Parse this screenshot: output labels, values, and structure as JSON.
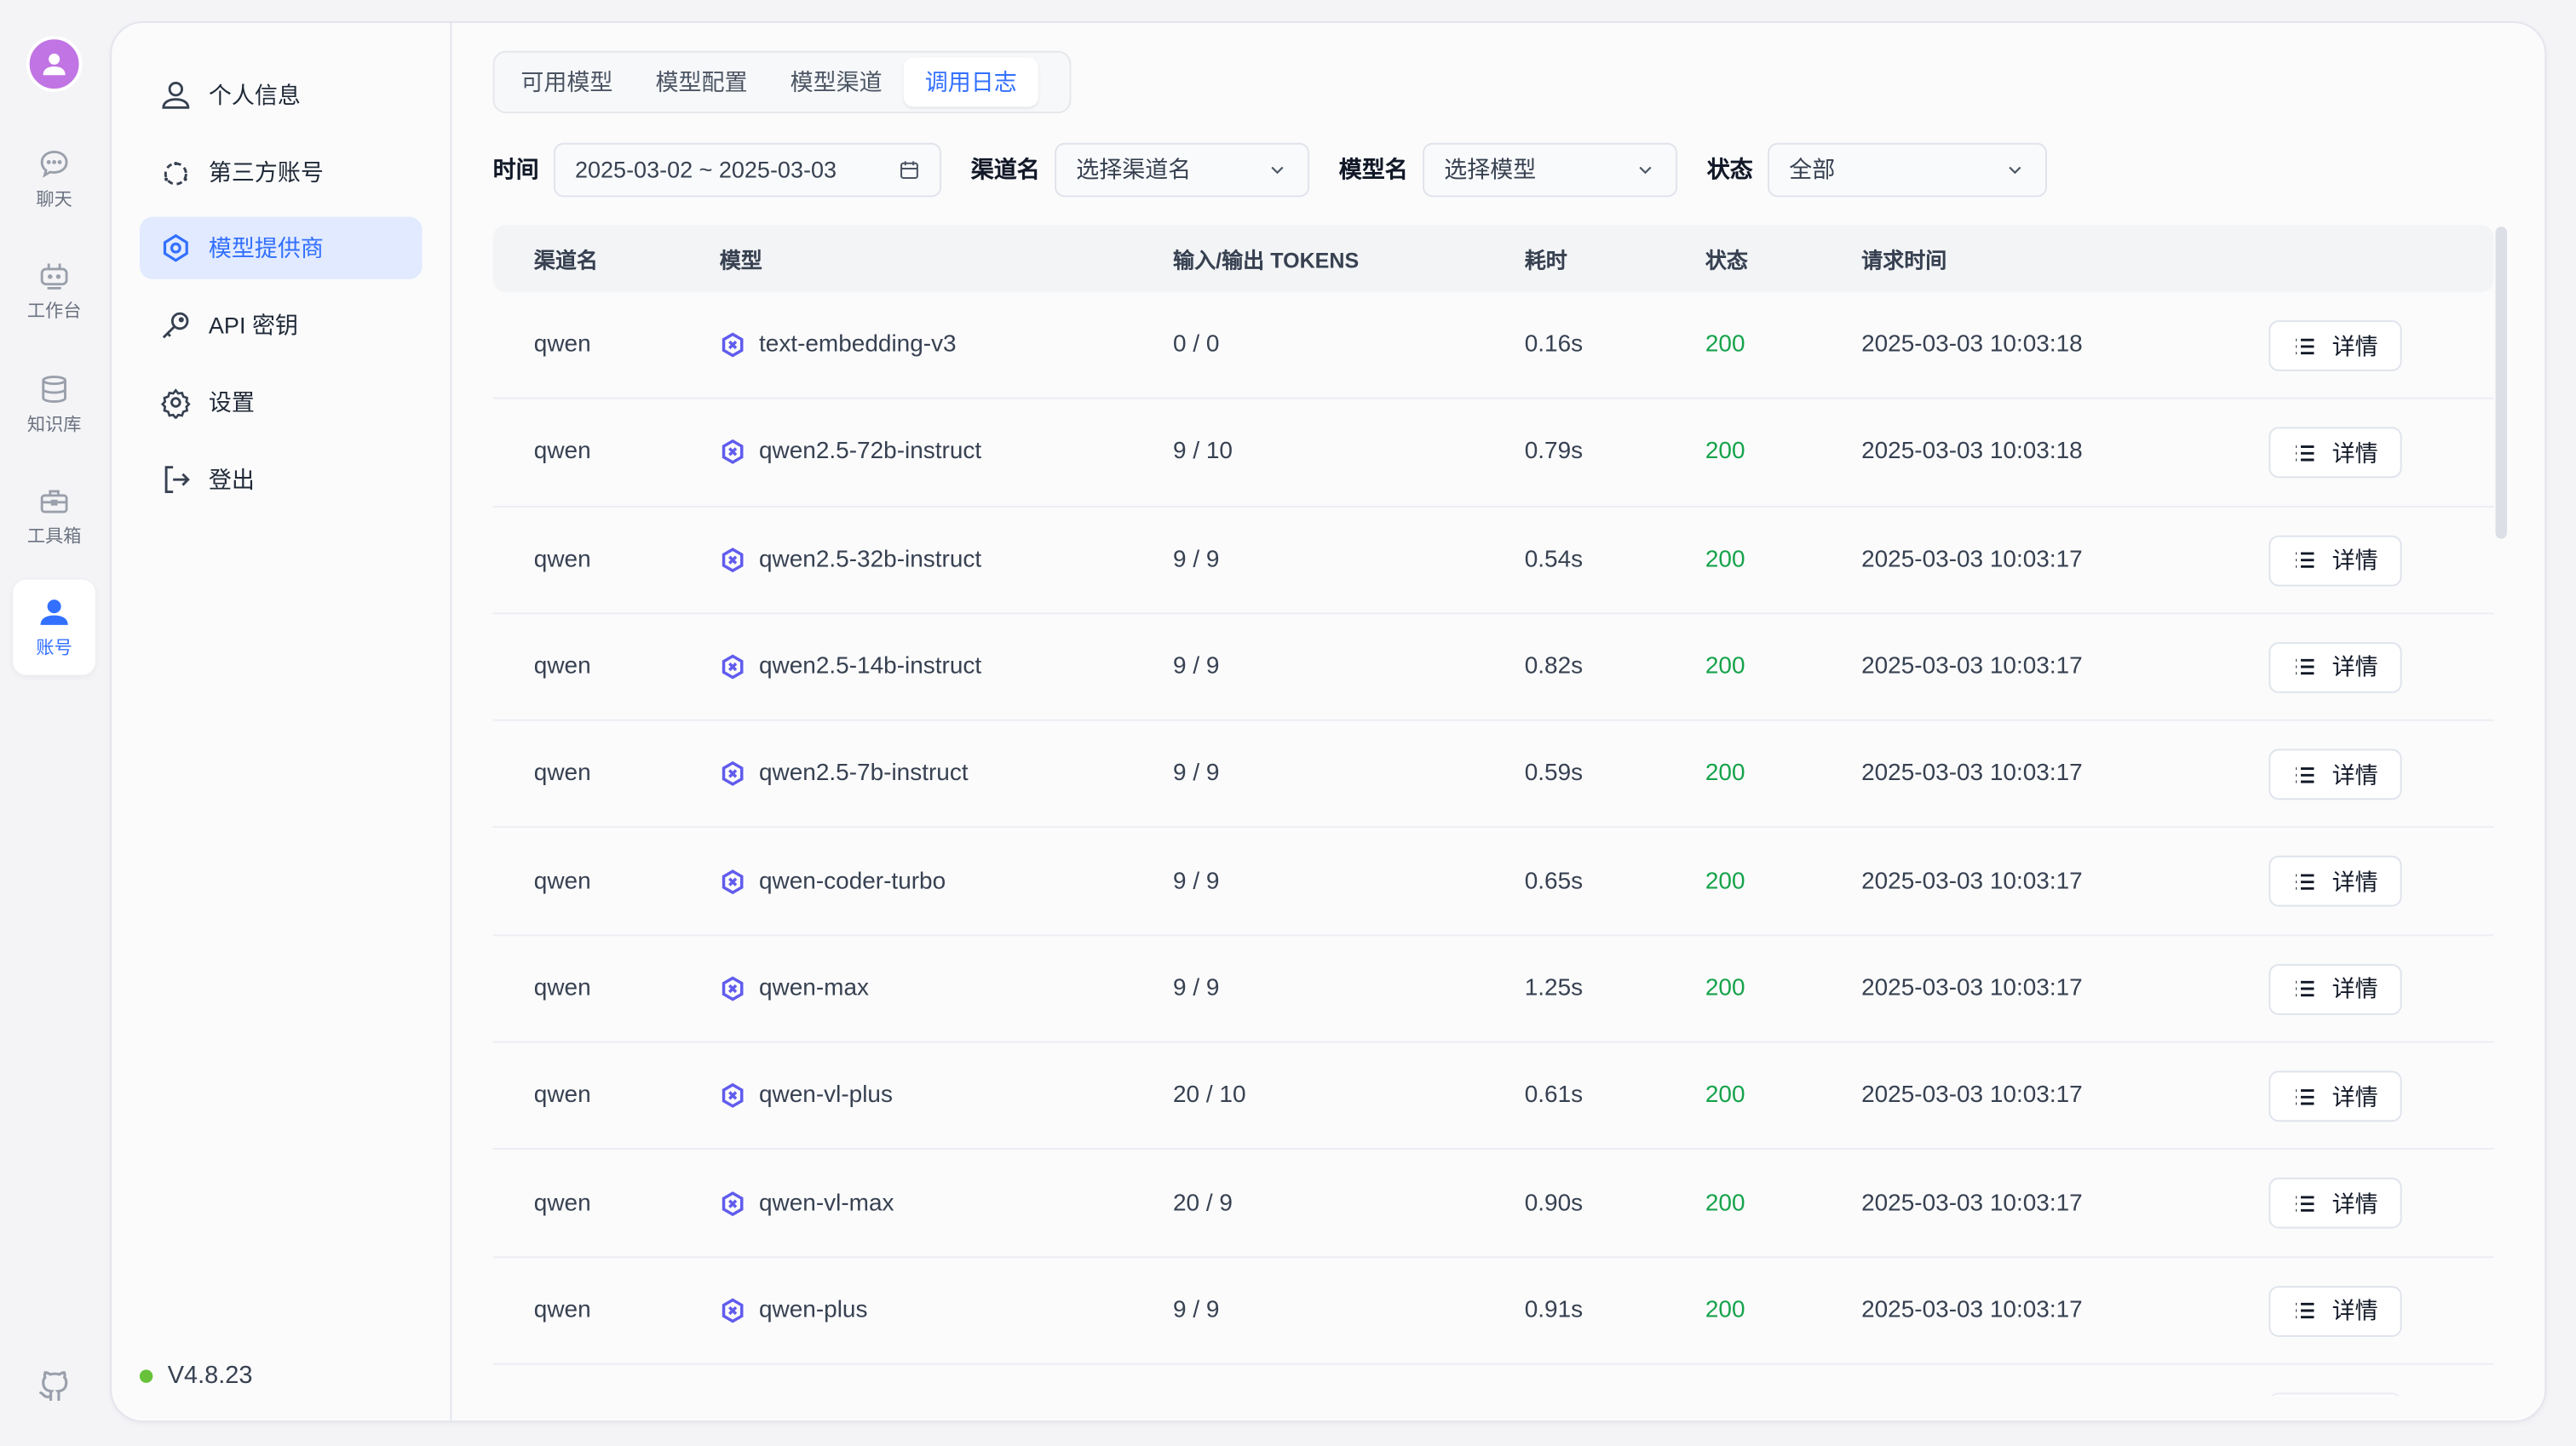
{
  "rail": {
    "items": [
      {
        "label": "聊天",
        "icon": "chat-icon"
      },
      {
        "label": "工作台",
        "icon": "robot-icon"
      },
      {
        "label": "知识库",
        "icon": "database-icon"
      },
      {
        "label": "工具箱",
        "icon": "toolbox-icon"
      },
      {
        "label": "账号",
        "icon": "user-icon",
        "active": true
      }
    ]
  },
  "sidebar": {
    "items": [
      {
        "label": "个人信息",
        "icon": "user-icon"
      },
      {
        "label": "第三方账号",
        "icon": "connections-icon"
      },
      {
        "label": "模型提供商",
        "icon": "model-provider-icon",
        "active": true
      },
      {
        "label": "API 密钥",
        "icon": "key-icon"
      },
      {
        "label": "设置",
        "icon": "gear-icon"
      },
      {
        "label": "登出",
        "icon": "logout-icon"
      }
    ],
    "version": "V4.8.23"
  },
  "tabs": [
    "可用模型",
    "模型配置",
    "模型渠道",
    "调用日志"
  ],
  "active_tab": "调用日志",
  "filters": {
    "time_label": "时间",
    "time_value": "2025-03-02 ~ 2025-03-03",
    "channel_label": "渠道名",
    "channel_placeholder": "选择渠道名",
    "model_label": "模型名",
    "model_placeholder": "选择模型",
    "status_label": "状态",
    "status_value": "全部"
  },
  "table": {
    "headers": [
      "渠道名",
      "模型",
      "输入/输出 TOKENS",
      "耗时",
      "状态",
      "请求时间"
    ],
    "detail_label": "详情",
    "rows": [
      [
        "qwen",
        "text-embedding-v3",
        "0 / 0",
        "0.16s",
        "200",
        "2025-03-03 10:03:18"
      ],
      [
        "qwen",
        "qwen2.5-72b-instruct",
        "9 / 10",
        "0.79s",
        "200",
        "2025-03-03 10:03:18"
      ],
      [
        "qwen",
        "qwen2.5-32b-instruct",
        "9 / 9",
        "0.54s",
        "200",
        "2025-03-03 10:03:17"
      ],
      [
        "qwen",
        "qwen2.5-14b-instruct",
        "9 / 9",
        "0.82s",
        "200",
        "2025-03-03 10:03:17"
      ],
      [
        "qwen",
        "qwen2.5-7b-instruct",
        "9 / 9",
        "0.59s",
        "200",
        "2025-03-03 10:03:17"
      ],
      [
        "qwen",
        "qwen-coder-turbo",
        "9 / 9",
        "0.65s",
        "200",
        "2025-03-03 10:03:17"
      ],
      [
        "qwen",
        "qwen-max",
        "9 / 9",
        "1.25s",
        "200",
        "2025-03-03 10:03:17"
      ],
      [
        "qwen",
        "qwen-vl-plus",
        "20 / 10",
        "0.61s",
        "200",
        "2025-03-03 10:03:17"
      ],
      [
        "qwen",
        "qwen-vl-max",
        "20 / 9",
        "0.90s",
        "200",
        "2025-03-03 10:03:17"
      ],
      [
        "qwen",
        "qwen-plus",
        "9 / 9",
        "0.91s",
        "200",
        "2025-03-03 10:03:17"
      ]
    ]
  },
  "colors": {
    "accent": "#3370ff",
    "success": "#16a34a",
    "avatar": "#c174e4",
    "online": "#67c23a",
    "model_icon": "#615ced"
  }
}
